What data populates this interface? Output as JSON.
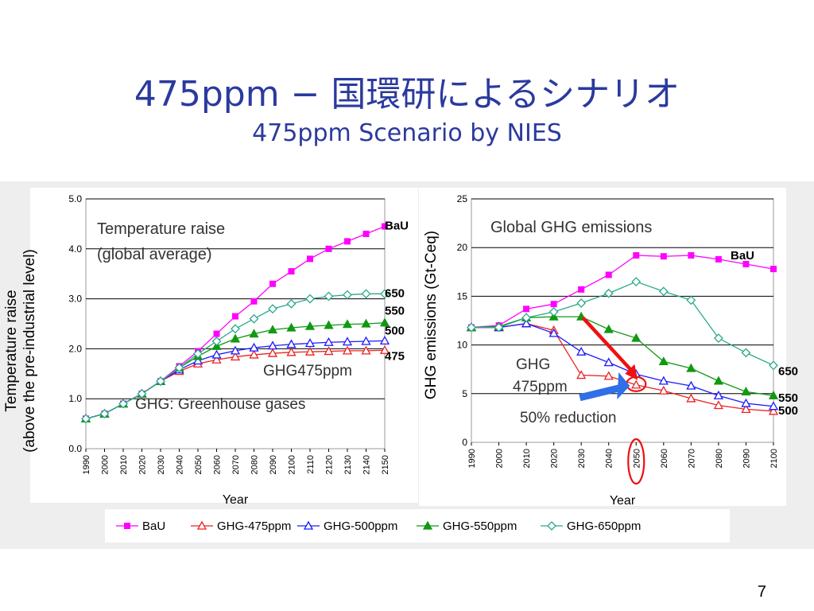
{
  "slide": {
    "title": "475ppm − 国環研によるシナリオ",
    "subtitle": "475ppm Scenario by NIES",
    "page_number": "7"
  },
  "colors": {
    "BaU": "#ff00ff",
    "GHG-475ppm": "#ee2222",
    "GHG-500ppm": "#1a1aff",
    "GHG-550ppm": "#119911",
    "GHG-650ppm": "#2aa88a",
    "title": "#2b3a9e"
  },
  "chart_data": [
    {
      "type": "line",
      "ylabel": "Temperature raise (above the pre-industrial level)",
      "xlabel": "Year",
      "ylim": [
        0,
        5
      ],
      "yticks": [
        "0.0",
        "1.0",
        "2.0",
        "3.0",
        "4.0",
        "5.0"
      ],
      "x": [
        1990,
        2000,
        2010,
        2020,
        2030,
        2040,
        2050,
        2060,
        2070,
        2080,
        2090,
        2100,
        2110,
        2120,
        2130,
        2140,
        2150
      ],
      "grid": "horizontal",
      "annotations": {
        "box_title_1": "Temperature raise",
        "box_title_2": "(global average)",
        "scenario_label": "GHG475ppm",
        "footnote": "GHG: Greenhouse gases"
      },
      "end_labels": [
        "BaU",
        "650",
        "550",
        "500",
        "475"
      ],
      "series": [
        {
          "name": "BaU",
          "marker": "square",
          "values": [
            0.6,
            0.7,
            0.9,
            1.1,
            1.35,
            1.65,
            1.95,
            2.3,
            2.65,
            2.95,
            3.3,
            3.55,
            3.8,
            4.0,
            4.15,
            4.3,
            4.45
          ]
        },
        {
          "name": "GHG-475ppm",
          "marker": "triangle-open",
          "values": [
            0.6,
            0.7,
            0.9,
            1.1,
            1.35,
            1.55,
            1.7,
            1.78,
            1.84,
            1.88,
            1.91,
            1.93,
            1.94,
            1.95,
            1.96,
            1.96,
            1.97
          ]
        },
        {
          "name": "GHG-500ppm",
          "marker": "triangle-open",
          "values": [
            0.6,
            0.7,
            0.9,
            1.1,
            1.35,
            1.58,
            1.76,
            1.88,
            1.96,
            2.02,
            2.06,
            2.09,
            2.11,
            2.13,
            2.14,
            2.15,
            2.16
          ]
        },
        {
          "name": "GHG-550ppm",
          "marker": "triangle-filled",
          "values": [
            0.6,
            0.7,
            0.9,
            1.1,
            1.35,
            1.62,
            1.85,
            2.05,
            2.2,
            2.3,
            2.38,
            2.42,
            2.45,
            2.47,
            2.49,
            2.5,
            2.52
          ]
        },
        {
          "name": "GHG-650ppm",
          "marker": "diamond-open",
          "values": [
            0.6,
            0.7,
            0.9,
            1.1,
            1.35,
            1.62,
            1.9,
            2.15,
            2.4,
            2.6,
            2.8,
            2.9,
            3.0,
            3.05,
            3.08,
            3.1,
            3.1
          ]
        }
      ]
    },
    {
      "type": "line",
      "ylabel": "GHG emissions (Gt-Ceq)",
      "xlabel": "Year",
      "ylim": [
        0,
        25
      ],
      "yticks": [
        "0",
        "5",
        "10",
        "15",
        "20",
        "25"
      ],
      "x": [
        1990,
        2000,
        2010,
        2020,
        2030,
        2040,
        2050,
        2060,
        2070,
        2080,
        2090,
        2100
      ],
      "grid": "horizontal",
      "annotations": {
        "box_title": "Global GHG emissions",
        "scenario_label_1": "GHG",
        "scenario_label_2": "475ppm",
        "reduction_label": "50% reduction",
        "highlight_year": "2050"
      },
      "end_labels": [
        "BaU",
        "650",
        "550",
        "500"
      ],
      "series": [
        {
          "name": "BaU",
          "marker": "square",
          "values": [
            11.8,
            12.0,
            13.7,
            14.2,
            15.7,
            17.2,
            19.2,
            19.1,
            19.2,
            18.8,
            18.3,
            17.8
          ]
        },
        {
          "name": "GHG-475ppm",
          "marker": "triangle-open",
          "values": [
            11.8,
            11.8,
            12.2,
            11.5,
            6.9,
            6.8,
            5.9,
            5.3,
            4.5,
            3.8,
            3.4,
            3.2
          ]
        },
        {
          "name": "GHG-500ppm",
          "marker": "triangle-open",
          "values": [
            11.8,
            11.8,
            12.2,
            11.2,
            9.3,
            8.2,
            7.0,
            6.3,
            5.8,
            4.8,
            4.0,
            3.7
          ]
        },
        {
          "name": "GHG-550ppm",
          "marker": "triangle-filled",
          "values": [
            11.8,
            11.9,
            12.8,
            12.9,
            12.9,
            11.6,
            10.7,
            8.3,
            7.6,
            6.3,
            5.2,
            4.8
          ]
        },
        {
          "name": "GHG-650ppm",
          "marker": "diamond-open",
          "values": [
            11.8,
            11.8,
            12.8,
            13.4,
            14.3,
            15.3,
            16.5,
            15.5,
            14.6,
            10.7,
            9.2,
            7.9
          ]
        }
      ]
    }
  ],
  "legend": {
    "items": [
      {
        "name": "BaU",
        "marker": "square"
      },
      {
        "name": "GHG-475ppm",
        "marker": "triangle-open"
      },
      {
        "name": "GHG-500ppm",
        "marker": "triangle-open"
      },
      {
        "name": "GHG-550ppm",
        "marker": "triangle-filled"
      },
      {
        "name": "GHG-650ppm",
        "marker": "diamond-open"
      }
    ]
  }
}
